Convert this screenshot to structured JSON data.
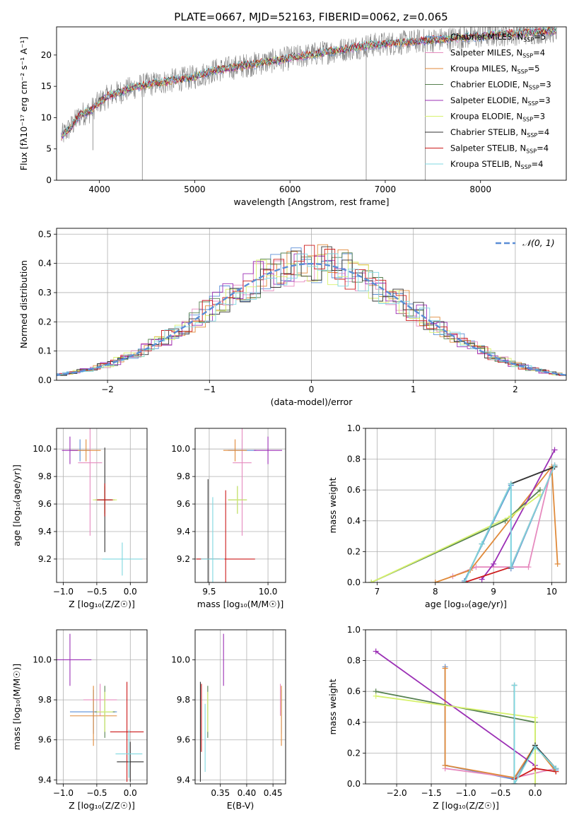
{
  "figure": {
    "title": "PLATE=0667, MJD=52163, FIBERID=0062, z=0.065"
  },
  "models": [
    {
      "name": "Chabrier MILES",
      "nssp": "5",
      "color": "#5b8ed6"
    },
    {
      "name": "Salpeter MILES",
      "nssp": "4",
      "color": "#e68bbf"
    },
    {
      "name": "Kroupa MILES",
      "nssp": "5",
      "color": "#e08a3a"
    },
    {
      "name": "Chabrier ELODIE",
      "nssp": "3",
      "color": "#55804f"
    },
    {
      "name": "Salpeter ELODIE",
      "nssp": "3",
      "color": "#9b2fb5"
    },
    {
      "name": "Kroupa ELODIE",
      "nssp": "3",
      "color": "#d7f26e"
    },
    {
      "name": "Chabrier STELIB",
      "nssp": "4",
      "color": "#333333"
    },
    {
      "name": "Salpeter STELIB",
      "nssp": "4",
      "color": "#cc1a1a"
    },
    {
      "name": "Kroupa STELIB",
      "nssp": "4",
      "color": "#7fd8e0"
    }
  ],
  "chart_data": [
    {
      "id": "spectrum",
      "type": "line",
      "xlabel": "wavelength [Angstrom, rest frame]",
      "ylabel": "Flux [fλ10⁻¹⁷ erg cm⁻² s⁻¹ A⁻¹]",
      "xlim": [
        3550,
        8900
      ],
      "ylim": [
        0,
        24.5
      ],
      "xticks": [
        4000,
        5000,
        6000,
        7000,
        8000
      ],
      "yticks": [
        0,
        5,
        10,
        15,
        20
      ],
      "grid": false,
      "legend": "upper right",
      "data_color": "#808080",
      "model_shape": {
        "x": [
          3600,
          3700,
          3800,
          3900,
          4000,
          4100,
          4200,
          4400,
          4600,
          4800,
          5000,
          5200,
          5400,
          5600,
          5800,
          6000,
          6200,
          6400,
          6600,
          6800,
          7000,
          7200,
          7400,
          7600,
          7800,
          8000,
          8200,
          8400,
          8600,
          8800
        ],
        "y": [
          7.0,
          8.5,
          10.5,
          11.0,
          12.5,
          13.5,
          14.0,
          15.0,
          15.5,
          16.0,
          16.5,
          17.5,
          18.0,
          18.5,
          19.0,
          19.5,
          20.0,
          20.5,
          21.0,
          21.5,
          21.8,
          22.0,
          22.3,
          22.5,
          22.8,
          23.0,
          23.3,
          23.5,
          23.7,
          23.9
        ]
      },
      "data_dips": [
        {
          "x": 3933,
          "y": 4.8
        },
        {
          "x": 4450,
          "y": 0.0
        },
        {
          "x": 6800,
          "y": 0.0
        },
        {
          "x": 7420,
          "y": 0.0
        }
      ]
    },
    {
      "id": "residual_hist",
      "type": "bar",
      "xlabel": "(data-model)/error",
      "ylabel": "Normed distribution",
      "xlim": [
        -2.5,
        2.5
      ],
      "ylim": [
        0,
        0.52
      ],
      "xticks": [
        -2,
        -1,
        0,
        1,
        2
      ],
      "yticks": [
        0.0,
        0.1,
        0.2,
        0.3,
        0.4,
        0.5
      ],
      "grid": true,
      "legend": "upper right",
      "reference": {
        "name": "𝒩(0, 1)",
        "mu": 0,
        "sigma": 1,
        "color": "#5b8ed6"
      },
      "bin_width": 0.1
    },
    {
      "id": "age_vs_Z",
      "type": "scatter",
      "xlabel": "Z [log₁₀(Z/Z☉)]",
      "ylabel": "age  [log₁₀(age/yr)]",
      "xlim": [
        -1.1,
        0.25
      ],
      "ylim": [
        9.03,
        10.15
      ],
      "xticks": [
        -1.0,
        -0.5,
        0.0
      ],
      "yticks": [
        9.2,
        9.4,
        9.6,
        9.8,
        10.0
      ],
      "grid": true,
      "points": [
        {
          "model": 0,
          "x": -0.75,
          "y": 9.99,
          "xerr": 0.15,
          "yerr": 0.08
        },
        {
          "model": 1,
          "x": -0.6,
          "y": 9.9,
          "xerr": 0.18,
          "yerr": 0.53
        },
        {
          "model": 2,
          "x": -0.66,
          "y": 9.99,
          "xerr": 0.22,
          "yerr": 0.08
        },
        {
          "model": 3,
          "x": -0.38,
          "y": 9.63,
          "xerr": 0.15,
          "yerr": 0.1
        },
        {
          "model": 4,
          "x": -0.9,
          "y": 9.99,
          "xerr": 0.12,
          "yerr": 0.1
        },
        {
          "model": 5,
          "x": -0.38,
          "y": 9.63,
          "xerr": 0.18,
          "yerr": 0.1
        },
        {
          "model": 6,
          "x": -0.38,
          "y": 9.63,
          "xerr": 0.1,
          "yerr": 0.38
        },
        {
          "model": 7,
          "x": -0.38,
          "y": 9.63,
          "xerr": 0.12,
          "yerr": 0.12
        },
        {
          "model": 8,
          "x": -0.12,
          "y": 9.2,
          "xerr": 0.3,
          "yerr": 0.12
        }
      ]
    },
    {
      "id": "age_vs_mass",
      "type": "scatter",
      "xlabel": "mass [log₁₀(M/M☉)]",
      "ylabel": "",
      "xlim": [
        9.38,
        10.15
      ],
      "ylim": [
        9.03,
        10.15
      ],
      "xticks": [
        9.5,
        10.0
      ],
      "yticks": [
        9.2,
        9.4,
        9.6,
        9.8,
        10.0
      ],
      "grid": true,
      "points": [
        {
          "model": 0,
          "x": 9.78,
          "y": 9.99,
          "xerr": 0.12,
          "yerr": 0.08
        },
        {
          "model": 1,
          "x": 9.78,
          "y": 9.9,
          "xerr": 0.08,
          "yerr": 0.53
        },
        {
          "model": 2,
          "x": 9.72,
          "y": 9.99,
          "xerr": 0.1,
          "yerr": 0.08
        },
        {
          "model": 3,
          "x": 9.74,
          "y": 9.63,
          "xerr": 0.08,
          "yerr": 0.1
        },
        {
          "model": 4,
          "x": 10.0,
          "y": 9.99,
          "xerr": 0.12,
          "yerr": 0.1
        },
        {
          "model": 5,
          "x": 9.74,
          "y": 9.63,
          "xerr": 0.08,
          "yerr": 0.1
        },
        {
          "model": 6,
          "x": 9.49,
          "y": 9.2,
          "xerr": 0.1,
          "yerr": 0.58
        },
        {
          "model": 7,
          "x": 9.64,
          "y": 9.2,
          "xerr": 0.25,
          "yerr": 0.5
        },
        {
          "model": 8,
          "x": 9.53,
          "y": 9.2,
          "xerr": 0.1,
          "yerr": 0.45
        }
      ]
    },
    {
      "id": "mass_weight_vs_age",
      "type": "line",
      "xlabel": "age  [log₁₀(age/yr)]",
      "ylabel": "mass weight",
      "xlim": [
        6.8,
        10.25
      ],
      "ylim": [
        0,
        1.0
      ],
      "xticks": [
        7,
        8,
        9,
        10
      ],
      "yticks": [
        0.0,
        0.2,
        0.4,
        0.6,
        0.8,
        1.0
      ],
      "grid": true,
      "series": [
        {
          "model": 0,
          "x": [
            8.5,
            9.3,
            9.3,
            10.05
          ],
          "y": [
            0.01,
            0.63,
            0.09,
            0.76
          ]
        },
        {
          "model": 1,
          "x": [
            8.3,
            8.7,
            9.6,
            10.0
          ],
          "y": [
            0.04,
            0.1,
            0.1,
            0.75
          ]
        },
        {
          "model": 2,
          "x": [
            8.0,
            8.6,
            10.0,
            10.1
          ],
          "y": [
            0.0,
            0.08,
            0.75,
            0.12
          ]
        },
        {
          "model": 3,
          "x": [
            6.9,
            9.2,
            9.8
          ],
          "y": [
            0.0,
            0.4,
            0.6
          ]
        },
        {
          "model": 4,
          "x": [
            8.8,
            9.0,
            10.05
          ],
          "y": [
            0.02,
            0.12,
            0.86
          ]
        },
        {
          "model": 5,
          "x": [
            6.9,
            9.3,
            9.8
          ],
          "y": [
            0.0,
            0.43,
            0.57
          ]
        },
        {
          "model": 6,
          "x": [
            8.5,
            8.8,
            9.3,
            10.05
          ],
          "y": [
            0.0,
            0.25,
            0.64,
            0.75
          ]
        },
        {
          "model": 7,
          "x": [
            8.5,
            9.3,
            10.05
          ],
          "y": [
            0.0,
            0.1,
            0.76
          ]
        },
        {
          "model": 8,
          "x": [
            8.5,
            8.8,
            9.3,
            9.3,
            10.05
          ],
          "y": [
            0.0,
            0.25,
            0.64,
            0.1,
            0.76
          ]
        }
      ]
    },
    {
      "id": "mass_vs_Z",
      "type": "scatter",
      "xlabel": "Z [log₁₀(Z/Z☉)]",
      "ylabel": "mass [log₁₀(M/M☉)]",
      "xlim": [
        -1.1,
        0.25
      ],
      "ylim": [
        9.38,
        10.15
      ],
      "xticks": [
        -1.0,
        -0.5,
        0.0
      ],
      "yticks": [
        9.4,
        9.6,
        9.8,
        10.0
      ],
      "grid": true,
      "points": [
        {
          "model": 0,
          "x": -0.55,
          "y": 9.74,
          "xerr": 0.35,
          "yerr": 0.11
        },
        {
          "model": 1,
          "x": -0.45,
          "y": 9.8,
          "xerr": 0.25,
          "yerr": 0.08
        },
        {
          "model": 2,
          "x": -0.55,
          "y": 9.72,
          "xerr": 0.35,
          "yerr": 0.15
        },
        {
          "model": 3,
          "x": -0.38,
          "y": 9.74,
          "xerr": 0.15,
          "yerr": 0.13
        },
        {
          "model": 4,
          "x": -0.9,
          "y": 10.0,
          "xerr": 0.32,
          "yerr": 0.13
        },
        {
          "model": 5,
          "x": -0.38,
          "y": 9.74,
          "xerr": 0.12,
          "yerr": 0.1
        },
        {
          "model": 6,
          "x": 0.0,
          "y": 9.49,
          "xerr": 0.2,
          "yerr": 0.1
        },
        {
          "model": 7,
          "x": -0.05,
          "y": 9.64,
          "xerr": 0.25,
          "yerr": 0.25
        },
        {
          "model": 8,
          "x": -0.02,
          "y": 9.53,
          "xerr": 0.2,
          "yerr": 0.12
        }
      ]
    },
    {
      "id": "mass_vs_ebv",
      "type": "scatter",
      "xlabel": "E(B-V)",
      "ylabel": "",
      "xlim": [
        0.302,
        0.474
      ],
      "ylim": [
        9.38,
        10.15
      ],
      "xticks": [
        0.35,
        0.4,
        0.45
      ],
      "yticks": [
        9.4,
        9.6,
        9.8,
        10.0
      ],
      "grid": true,
      "points": [
        {
          "model": 0,
          "x": 0.466,
          "y": 9.74,
          "xerr": 0,
          "yerr": 0.11
        },
        {
          "model": 1,
          "x": 0.464,
          "y": 9.8,
          "xerr": 0,
          "yerr": 0.08
        },
        {
          "model": 2,
          "x": 0.466,
          "y": 9.72,
          "xerr": 0,
          "yerr": 0.15
        },
        {
          "model": 3,
          "x": 0.326,
          "y": 9.74,
          "xerr": 0,
          "yerr": 0.13
        },
        {
          "model": 4,
          "x": 0.356,
          "y": 10.0,
          "xerr": 0,
          "yerr": 0.13
        },
        {
          "model": 5,
          "x": 0.326,
          "y": 9.74,
          "xerr": 0,
          "yerr": 0.1
        },
        {
          "model": 6,
          "x": 0.312,
          "y": 9.64,
          "xerr": 0,
          "yerr": 0.25
        },
        {
          "model": 7,
          "x": 0.314,
          "y": 9.71,
          "xerr": 0,
          "yerr": 0.17
        },
        {
          "model": 8,
          "x": 0.321,
          "y": 9.61,
          "xerr": 0,
          "yerr": 0.17
        }
      ]
    },
    {
      "id": "mass_weight_vs_Z",
      "type": "line",
      "xlabel": "Z [log₁₀(Z/Z☉)]",
      "ylabel": "mass weight",
      "xlim": [
        -2.45,
        0.45
      ],
      "ylim": [
        0,
        1.0
      ],
      "xticks": [
        -2.0,
        -1.5,
        -1.0,
        -0.5,
        0.0
      ],
      "yticks": [
        0.0,
        0.2,
        0.4,
        0.6,
        0.8,
        1.0
      ],
      "grid": true,
      "series": [
        {
          "model": 0,
          "x": [
            -1.3,
            -1.3,
            -0.3,
            0.0,
            0.3
          ],
          "y": [
            0.76,
            0.12,
            0.03,
            0.25,
            0.09
          ]
        },
        {
          "model": 1,
          "x": [
            -1.3,
            -0.3,
            0.3
          ],
          "y": [
            0.1,
            0.04,
            0.1
          ]
        },
        {
          "model": 2,
          "x": [
            -1.3,
            -1.3,
            -0.3,
            0.0,
            0.3
          ],
          "y": [
            0.75,
            0.12,
            0.04,
            0.25,
            0.08
          ]
        },
        {
          "model": 3,
          "x": [
            -2.3,
            0.0,
            0.0
          ],
          "y": [
            0.6,
            0.4,
            0.0
          ]
        },
        {
          "model": 4,
          "x": [
            -2.3,
            0.0
          ],
          "y": [
            0.86,
            0.12
          ]
        },
        {
          "model": 5,
          "x": [
            -2.3,
            0.0,
            0.0
          ],
          "y": [
            0.57,
            0.43,
            0.0
          ]
        },
        {
          "model": 6,
          "x": [
            -0.3,
            -0.3,
            0.0,
            0.3
          ],
          "y": [
            0.64,
            0.0,
            0.25,
            0.1
          ]
        },
        {
          "model": 7,
          "x": [
            -0.3,
            0.0,
            0.3
          ],
          "y": [
            0.03,
            0.1,
            0.08
          ]
        },
        {
          "model": 8,
          "x": [
            -0.3,
            -0.3,
            0.0,
            0.3
          ],
          "y": [
            0.64,
            0.0,
            0.24,
            0.1
          ]
        }
      ]
    }
  ]
}
